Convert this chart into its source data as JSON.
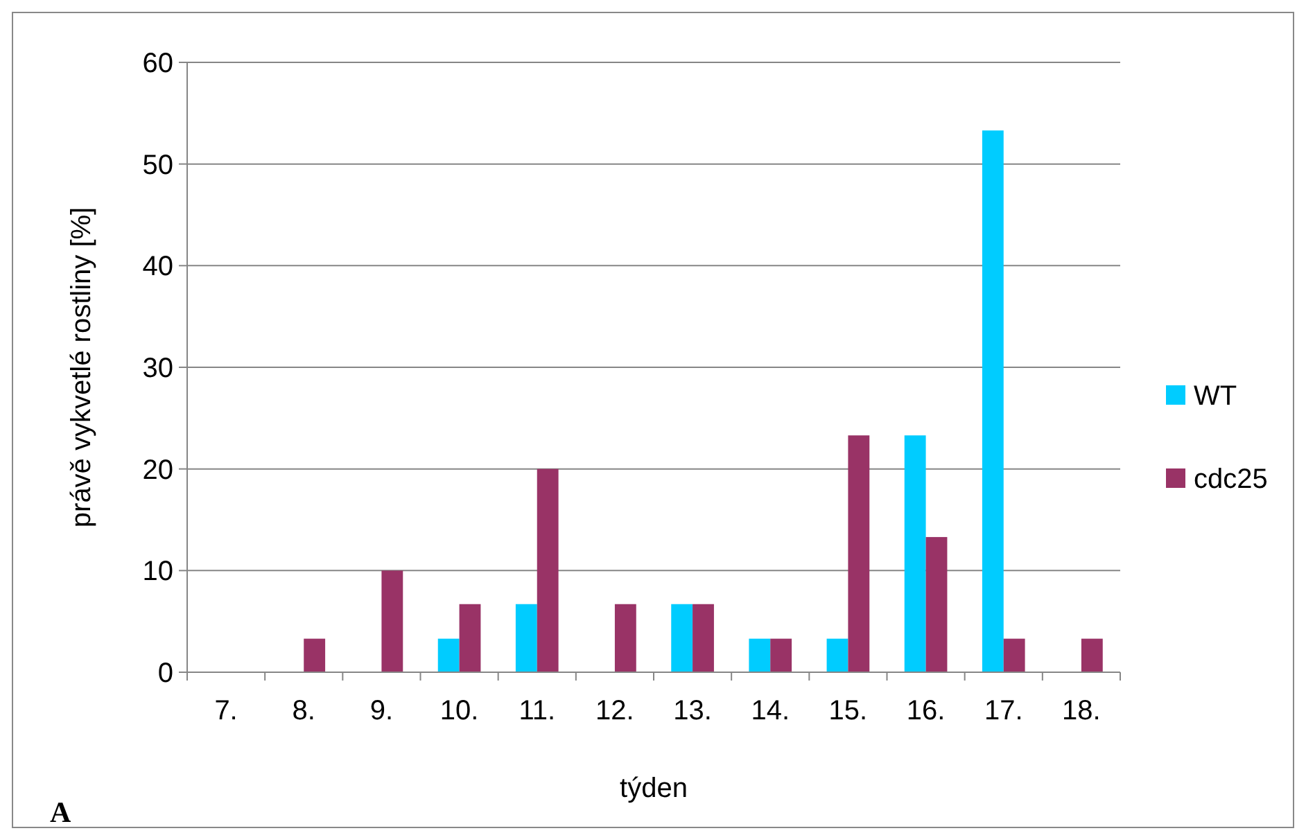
{
  "chart_data": {
    "type": "bar",
    "xlabel": "týden",
    "ylabel": "právě vykvetlé rostliny [%]",
    "categories": [
      "7.",
      "8.",
      "9.",
      "10.",
      "11.",
      "12.",
      "13.",
      "14.",
      "15.",
      "16.",
      "17.",
      "18."
    ],
    "series": [
      {
        "name": "WT",
        "color": "#00ccff",
        "values": [
          0,
          0,
          0,
          3.3,
          6.7,
          0,
          6.7,
          3.3,
          3.3,
          23.3,
          53.3,
          0
        ]
      },
      {
        "name": "cdc25",
        "color": "#993366",
        "values": [
          0,
          3.3,
          10,
          6.7,
          20,
          6.7,
          6.7,
          3.3,
          23.3,
          13.3,
          3.3,
          3.3
        ]
      }
    ],
    "ylim": [
      0,
      60
    ],
    "yticks": [
      0,
      10,
      20,
      30,
      40,
      50,
      60
    ],
    "grid": "y",
    "legend": "right",
    "annotations": [
      "A"
    ]
  }
}
